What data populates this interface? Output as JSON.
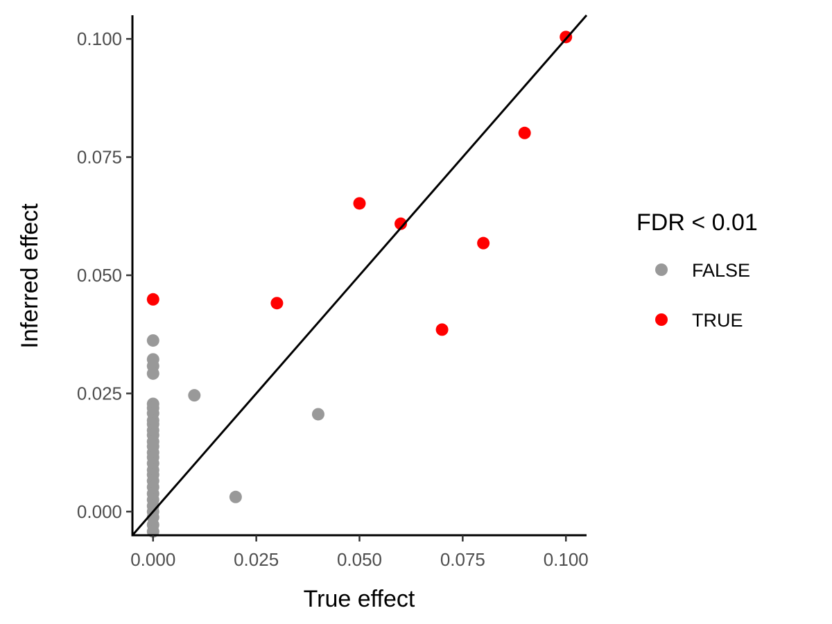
{
  "chart_data": {
    "type": "scatter",
    "xlabel": "True effect",
    "ylabel": "Inferred effect",
    "xlim": [
      -0.005,
      0.105
    ],
    "ylim": [
      -0.005,
      0.105
    ],
    "x_ticks": [
      0.0,
      0.025,
      0.05,
      0.075,
      0.1
    ],
    "y_ticks": [
      0.0,
      0.025,
      0.05,
      0.075,
      0.1
    ],
    "x_tick_labels": [
      "0.000",
      "0.025",
      "0.050",
      "0.075",
      "0.100"
    ],
    "y_tick_labels": [
      "0.000",
      "0.025",
      "0.050",
      "0.075",
      "0.100"
    ],
    "reference_line": {
      "type": "identity",
      "slope": 1,
      "intercept": 0
    },
    "grid": false,
    "legend": {
      "title": "FDR < 0.01",
      "placement": "right",
      "entries": [
        {
          "label": "FALSE",
          "color": "#999999"
        },
        {
          "label": "TRUE",
          "color": "#ff0000"
        }
      ]
    },
    "series": [
      {
        "name": "FALSE",
        "color": "#999999",
        "points": [
          {
            "x": 0.0,
            "y": 0.0362
          },
          {
            "x": 0.0,
            "y": 0.0322
          },
          {
            "x": 0.0,
            "y": 0.0308
          },
          {
            "x": 0.0,
            "y": 0.0292
          },
          {
            "x": 0.0,
            "y": 0.0228
          },
          {
            "x": 0.0,
            "y": 0.0219
          },
          {
            "x": 0.0,
            "y": 0.0208
          },
          {
            "x": 0.0,
            "y": 0.0193
          },
          {
            "x": 0.0,
            "y": 0.0185
          },
          {
            "x": 0.0,
            "y": 0.0172
          },
          {
            "x": 0.0,
            "y": 0.0162
          },
          {
            "x": 0.0,
            "y": 0.0148
          },
          {
            "x": 0.0,
            "y": 0.0138
          },
          {
            "x": 0.0,
            "y": 0.0125
          },
          {
            "x": 0.0,
            "y": 0.0115
          },
          {
            "x": 0.0,
            "y": 0.0102
          },
          {
            "x": 0.0,
            "y": 0.0088
          },
          {
            "x": 0.0,
            "y": 0.0078
          },
          {
            "x": 0.0,
            "y": 0.0065
          },
          {
            "x": 0.0,
            "y": 0.0052
          },
          {
            "x": 0.0,
            "y": 0.0038
          },
          {
            "x": 0.0,
            "y": 0.0025
          },
          {
            "x": 0.0,
            "y": 0.0012
          },
          {
            "x": 0.0,
            "y": 0.0
          },
          {
            "x": 0.0,
            "y": -0.0012
          },
          {
            "x": 0.0,
            "y": -0.0028
          },
          {
            "x": 0.0,
            "y": -0.0042
          },
          {
            "x": 0.01,
            "y": 0.0246
          },
          {
            "x": 0.02,
            "y": 0.0031
          },
          {
            "x": 0.04,
            "y": 0.0206
          }
        ]
      },
      {
        "name": "TRUE",
        "color": "#ff0000",
        "points": [
          {
            "x": 0.0,
            "y": 0.0449
          },
          {
            "x": 0.03,
            "y": 0.0441
          },
          {
            "x": 0.05,
            "y": 0.0652
          },
          {
            "x": 0.06,
            "y": 0.0609
          },
          {
            "x": 0.07,
            "y": 0.0385
          },
          {
            "x": 0.08,
            "y": 0.0568
          },
          {
            "x": 0.09,
            "y": 0.0801
          },
          {
            "x": 0.1,
            "y": 0.1004
          }
        ]
      }
    ]
  }
}
